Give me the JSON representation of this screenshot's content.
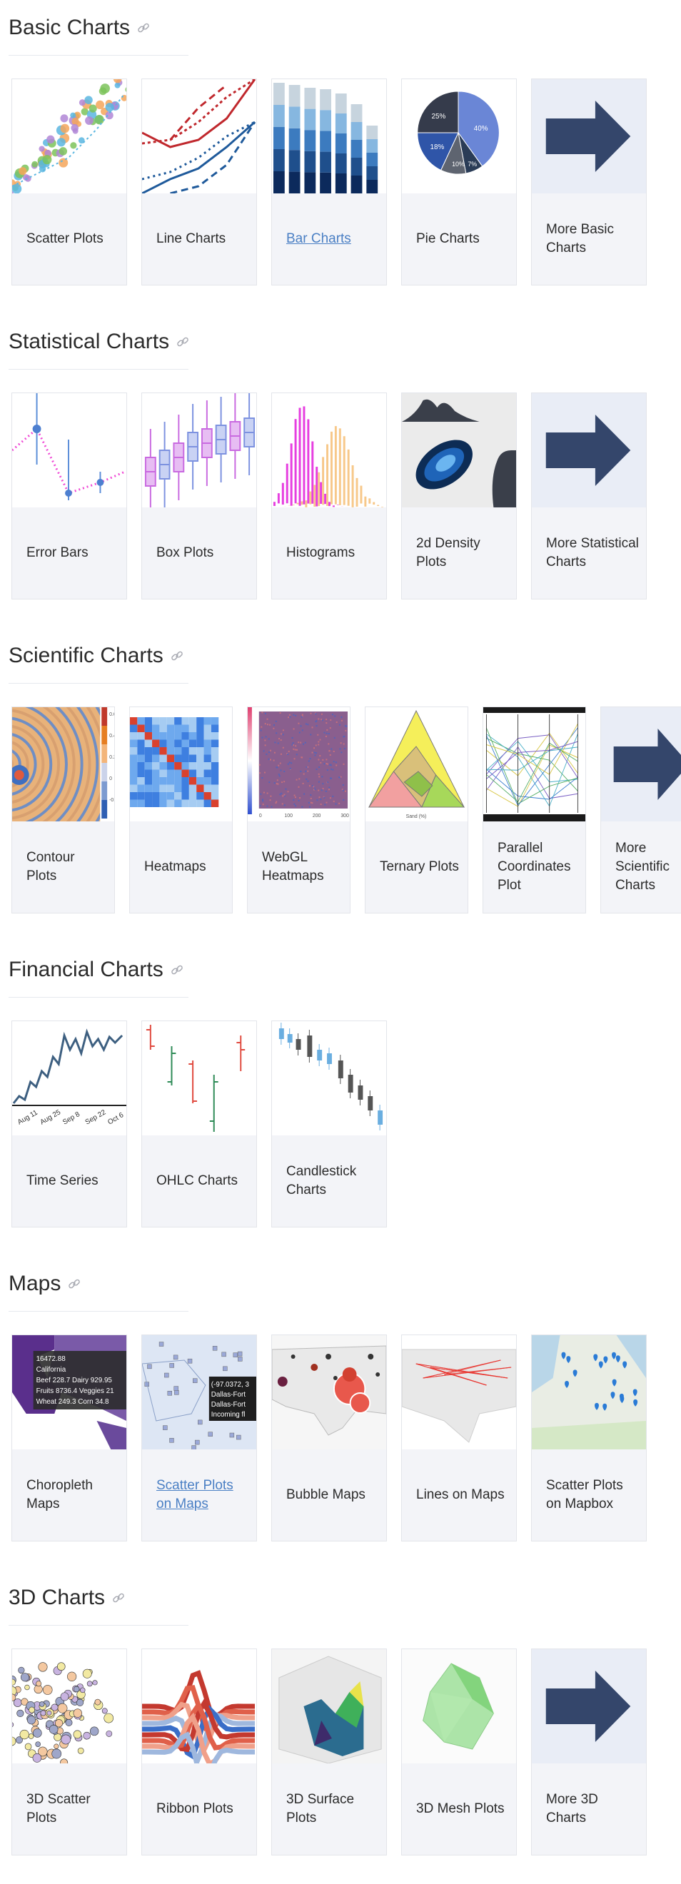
{
  "sections": [
    {
      "title": "Basic Charts",
      "items": [
        {
          "label": "Scatter Plots",
          "thumb": "scatter"
        },
        {
          "label": "Line Charts",
          "thumb": "line"
        },
        {
          "label": "Bar Charts",
          "thumb": "bar",
          "link": true
        },
        {
          "label": "Pie Charts",
          "thumb": "pie"
        },
        {
          "label": "More Basic Charts",
          "thumb": "arrow"
        }
      ]
    },
    {
      "title": "Statistical Charts",
      "items": [
        {
          "label": "Error Bars",
          "thumb": "errorbars"
        },
        {
          "label": "Box Plots",
          "thumb": "box"
        },
        {
          "label": "Histograms",
          "thumb": "hist"
        },
        {
          "label": "2d Density Plots",
          "thumb": "density"
        },
        {
          "label": "More Statistical Charts",
          "thumb": "arrow"
        }
      ]
    },
    {
      "title": "Scientific Charts",
      "items": [
        {
          "label": "Contour Plots",
          "thumb": "contour"
        },
        {
          "label": "Heatmaps",
          "thumb": "heatmap"
        },
        {
          "label": "WebGL Heatmaps",
          "thumb": "webgl"
        },
        {
          "label": "Ternary Plots",
          "thumb": "ternary"
        },
        {
          "label": "Parallel Coordinates Plot",
          "thumb": "parallel"
        },
        {
          "label": "More Scientific Charts",
          "thumb": "arrow"
        }
      ]
    },
    {
      "title": "Financial Charts",
      "items": [
        {
          "label": "Time Series",
          "thumb": "timeseries"
        },
        {
          "label": "OHLC Charts",
          "thumb": "ohlc"
        },
        {
          "label": "Candlestick Charts",
          "thumb": "candle"
        }
      ]
    },
    {
      "title": "Maps",
      "items": [
        {
          "label": "Choropleth Maps",
          "thumb": "choropleth"
        },
        {
          "label": "Scatter Plots on Maps",
          "thumb": "scattermap",
          "link": true
        },
        {
          "label": "Bubble Maps",
          "thumb": "bubblemap"
        },
        {
          "label": "Lines on Maps",
          "thumb": "linesmap"
        },
        {
          "label": "Scatter Plots on Mapbox",
          "thumb": "mapbox"
        }
      ]
    },
    {
      "title": "3D Charts",
      "items": [
        {
          "label": "3D Scatter Plots",
          "thumb": "scatter3d"
        },
        {
          "label": "Ribbon Plots",
          "thumb": "ribbon"
        },
        {
          "label": "3D Surface Plots",
          "thumb": "surface"
        },
        {
          "label": "3D Mesh Plots",
          "thumb": "mesh"
        },
        {
          "label": "More 3D Charts",
          "thumb": "arrow"
        }
      ]
    }
  ],
  "thumb_text": {
    "pie": [
      "25%",
      "40%",
      "18%",
      "10%",
      "7%"
    ],
    "choropleth": [
      "16472.88",
      "California",
      "Beef 228.7 Dairy 929.95",
      "Fruits 8736.4 Veggies 21",
      "Wheat 249.3 Corn 34.8"
    ],
    "scattermap": [
      "(-97.0372, 3",
      "Dallas-Fort",
      "Dallas-Fort",
      "Incoming fl"
    ],
    "timeseries": [
      "Aug 11",
      "Aug 25",
      "Sep 8",
      "Sep 22",
      "Oct 6"
    ],
    "webgl": [
      "0",
      "100",
      "200",
      "300"
    ],
    "ternary": [
      "Sand (%)"
    ],
    "heatmap_scale": [
      "1",
      "0.6",
      "0.4",
      "0.2",
      "0",
      "-0.2"
    ],
    "contour_scale": [
      "0.6",
      "0.4",
      "0.2",
      "0",
      "-0.2"
    ]
  },
  "colors": {
    "title": "#2b2b2b",
    "link": "#4a7fc4",
    "card_bg": "#f3f4f8",
    "card_border": "#e3e5ea",
    "arrow": "#34466b",
    "arrow_bg": "#e9edf6"
  }
}
